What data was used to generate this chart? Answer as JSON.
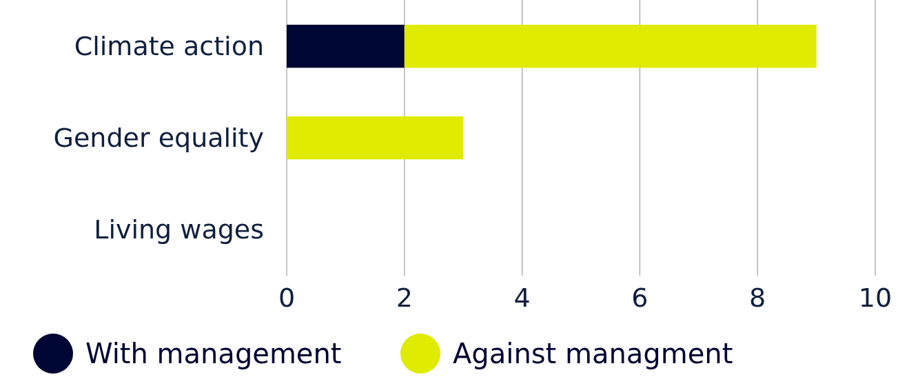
{
  "chart_data": {
    "type": "bar",
    "orientation": "horizontal",
    "stacked": true,
    "categories": [
      "Climate action",
      "Gender equality",
      "Living wages"
    ],
    "series": [
      {
        "name": "With management",
        "color": "#000633",
        "values": [
          2,
          0,
          0
        ]
      },
      {
        "name": "Against managment",
        "color": "#dfeb00",
        "values": [
          7,
          3,
          0
        ]
      }
    ],
    "xlim": [
      0,
      10
    ],
    "xticks": [
      0,
      2,
      4,
      6,
      8,
      10
    ],
    "grid": "x",
    "legend": "bottom"
  }
}
